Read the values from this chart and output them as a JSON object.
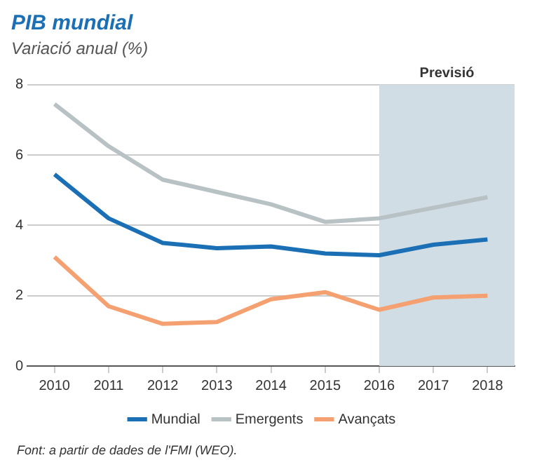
{
  "chart_data": {
    "type": "line",
    "title": "PIB mundial",
    "subtitle": "Variació anual (%)",
    "x": [
      2010,
      2011,
      2012,
      2013,
      2014,
      2015,
      2016,
      2017,
      2018
    ],
    "xlim": [
      2009.5,
      2018.5
    ],
    "xticks": [
      2010,
      2011,
      2012,
      2013,
      2014,
      2015,
      2016,
      2017,
      2018
    ],
    "ylim": [
      0,
      8
    ],
    "yticks": [
      0,
      2,
      4,
      6,
      8
    ],
    "grid": "y",
    "legend": "bottom",
    "marker": "none",
    "line_style": "solid",
    "series": [
      {
        "name": "Mundial",
        "color": "#1a6fb5",
        "values": [
          5.45,
          4.2,
          3.5,
          3.35,
          3.4,
          3.2,
          3.15,
          3.45,
          3.6
        ]
      },
      {
        "name": "Emergents",
        "color": "#b8c2c5",
        "values": [
          7.45,
          6.25,
          5.3,
          4.95,
          4.6,
          4.1,
          4.2,
          4.5,
          4.8
        ]
      },
      {
        "name": "Avançats",
        "color": "#f4a070",
        "values": [
          3.1,
          1.7,
          1.2,
          1.25,
          1.9,
          2.1,
          1.6,
          1.95,
          2.0
        ]
      }
    ],
    "bands": [
      {
        "axis": "x",
        "from": 2016,
        "to": 2018.5,
        "label": "Previsió",
        "color": "#d1dde4"
      }
    ],
    "annotations": [
      "Font: a partir de dades de l'FMI (WEO)."
    ]
  }
}
